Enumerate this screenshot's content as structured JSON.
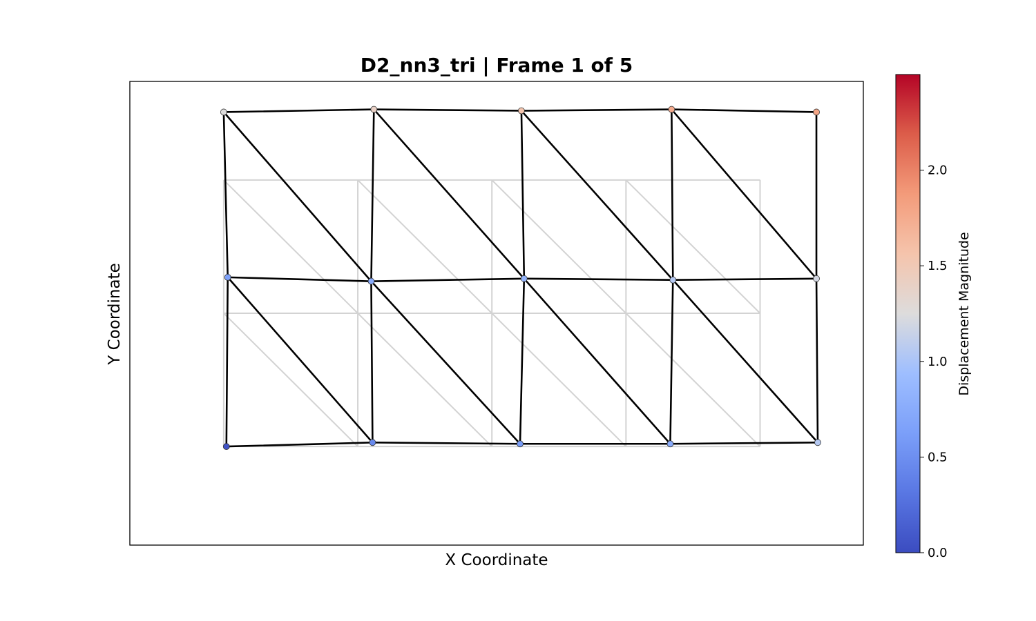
{
  "chart_data": {
    "type": "scatter",
    "title": "D2_nn3_tri  |  Frame 1 of 5",
    "xlabel": "X Coordinate",
    "ylabel": "Y Coordinate",
    "grid": false,
    "axis_ticks_visible": false,
    "xlim": [
      -0.7,
      4.77
    ],
    "ylim": [
      -0.74,
      2.74
    ],
    "colormap": "coolwarm",
    "colorbar": {
      "label": "Displacement Magnitude",
      "range": [
        0.0,
        2.5
      ],
      "ticks": [
        0.0,
        0.5,
        1.0,
        1.5,
        2.0
      ],
      "tick_labels": [
        "0.0",
        "0.5",
        "1.0",
        "1.5",
        "2.0"
      ]
    },
    "reference_mesh": {
      "color": "#d3d3d3",
      "nodes": [
        [
          0,
          0
        ],
        [
          1,
          0
        ],
        [
          2,
          0
        ],
        [
          3,
          0
        ],
        [
          4,
          0
        ],
        [
          0,
          1
        ],
        [
          1,
          1
        ],
        [
          2,
          1
        ],
        [
          3,
          1
        ],
        [
          4,
          1
        ],
        [
          0,
          2
        ],
        [
          1,
          2
        ],
        [
          2,
          2
        ],
        [
          3,
          2
        ],
        [
          4,
          2
        ]
      ],
      "triangles": [
        [
          0,
          1,
          5
        ],
        [
          1,
          6,
          5
        ],
        [
          1,
          2,
          6
        ],
        [
          2,
          7,
          6
        ],
        [
          2,
          3,
          7
        ],
        [
          3,
          8,
          7
        ],
        [
          3,
          4,
          8
        ],
        [
          4,
          9,
          8
        ],
        [
          5,
          6,
          10
        ],
        [
          6,
          11,
          10
        ],
        [
          6,
          7,
          11
        ],
        [
          7,
          12,
          11
        ],
        [
          7,
          8,
          12
        ],
        [
          8,
          13,
          12
        ],
        [
          8,
          9,
          13
        ],
        [
          9,
          14,
          13
        ]
      ]
    },
    "deformed_mesh": {
      "color": "#000000",
      "nodes": [
        {
          "x": 0.02,
          "y": 0.0,
          "displacement": 0.05
        },
        {
          "x": 1.11,
          "y": 0.03,
          "displacement": 0.45
        },
        {
          "x": 2.21,
          "y": 0.02,
          "displacement": 0.6
        },
        {
          "x": 3.33,
          "y": 0.02,
          "displacement": 0.75
        },
        {
          "x": 4.43,
          "y": 0.03,
          "displacement": 1.05
        },
        {
          "x": 0.03,
          "y": 1.27,
          "displacement": 0.65
        },
        {
          "x": 1.1,
          "y": 1.24,
          "displacement": 0.75
        },
        {
          "x": 2.24,
          "y": 1.26,
          "displacement": 0.85
        },
        {
          "x": 3.35,
          "y": 1.25,
          "displacement": 1.05
        },
        {
          "x": 4.42,
          "y": 1.26,
          "displacement": 1.2
        },
        {
          "x": 0.0,
          "y": 2.51,
          "displacement": 1.25
        },
        {
          "x": 1.12,
          "y": 2.53,
          "displacement": 1.4
        },
        {
          "x": 2.22,
          "y": 2.52,
          "displacement": 1.55
        },
        {
          "x": 3.34,
          "y": 2.53,
          "displacement": 1.75
        },
        {
          "x": 4.42,
          "y": 2.51,
          "displacement": 1.8
        }
      ],
      "triangles": [
        [
          0,
          1,
          5
        ],
        [
          1,
          6,
          5
        ],
        [
          1,
          2,
          6
        ],
        [
          2,
          7,
          6
        ],
        [
          2,
          3,
          7
        ],
        [
          3,
          8,
          7
        ],
        [
          3,
          4,
          8
        ],
        [
          4,
          9,
          8
        ],
        [
          5,
          6,
          10
        ],
        [
          6,
          11,
          10
        ],
        [
          6,
          7,
          11
        ],
        [
          7,
          12,
          11
        ],
        [
          7,
          8,
          12
        ],
        [
          8,
          13,
          12
        ],
        [
          8,
          9,
          13
        ],
        [
          9,
          14,
          13
        ]
      ]
    }
  }
}
